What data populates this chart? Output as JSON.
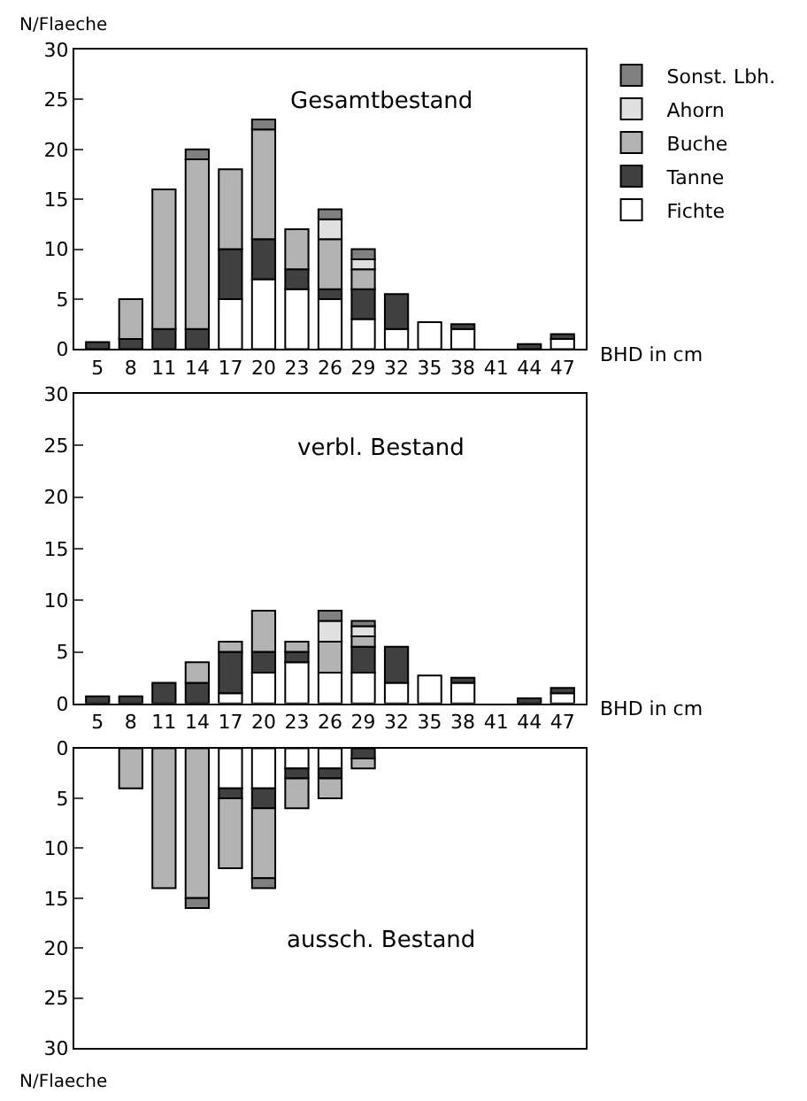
{
  "chart_data": [
    {
      "type": "bar",
      "stacked": true,
      "title": "Gesamtbestand",
      "xlabel": "BHD in cm",
      "ylabel": "N/Flaeche",
      "legend": "top right",
      "grid": false,
      "categories": [
        "5",
        "8",
        "11",
        "14",
        "17",
        "20",
        "23",
        "26",
        "29",
        "32",
        "35",
        "38",
        "41",
        "44",
        "47"
      ],
      "ylim": [
        0,
        30
      ],
      "yticks": [
        0,
        5,
        10,
        15,
        20,
        25,
        30
      ],
      "series": [
        {
          "name": "Fichte",
          "color": "#ffffff",
          "values": [
            null,
            null,
            null,
            null,
            5,
            7,
            6,
            5,
            3,
            2,
            2.7,
            2,
            null,
            null,
            1
          ]
        },
        {
          "name": "Tanne",
          "color": "#404040",
          "values": [
            0.7,
            1,
            2,
            2,
            5,
            4,
            2,
            1,
            3,
            3.5,
            null,
            0.5,
            null,
            0.5,
            0.5
          ]
        },
        {
          "name": "Buche",
          "color": "#b3b3b3",
          "values": [
            null,
            4,
            14,
            17,
            8,
            11,
            4,
            5,
            2,
            null,
            null,
            null,
            null,
            null,
            null
          ]
        },
        {
          "name": "Ahorn",
          "color": "#e0e0e0",
          "values": [
            null,
            null,
            null,
            null,
            null,
            null,
            null,
            2,
            1,
            null,
            null,
            null,
            null,
            null,
            null
          ]
        },
        {
          "name": "Sonst. Lbh.",
          "color": "#808080",
          "values": [
            null,
            null,
            null,
            1,
            null,
            1,
            null,
            1,
            1,
            null,
            null,
            null,
            null,
            null,
            null
          ]
        }
      ]
    },
    {
      "type": "bar",
      "stacked": true,
      "title": "verbl. Bestand",
      "xlabel": "BHD in cm",
      "grid": false,
      "categories": [
        "5",
        "8",
        "11",
        "14",
        "17",
        "20",
        "23",
        "26",
        "29",
        "32",
        "35",
        "38",
        "41",
        "44",
        "47"
      ],
      "ylim": [
        0,
        30
      ],
      "yticks": [
        0,
        5,
        10,
        15,
        20,
        25,
        30
      ],
      "series": [
        {
          "color": "#ffffff",
          "values": [
            null,
            null,
            null,
            null,
            1,
            3,
            4,
            3,
            3,
            2,
            2.7,
            2,
            null,
            null,
            1
          ]
        },
        {
          "color": "#404040",
          "values": [
            0.7,
            0.7,
            2,
            2,
            4,
            2,
            1,
            null,
            2.5,
            3.5,
            null,
            0.5,
            null,
            0.5,
            0.5
          ]
        },
        {
          "color": "#b3b3b3",
          "values": [
            null,
            null,
            null,
            2,
            1,
            4,
            1,
            3,
            1,
            null,
            null,
            null,
            null,
            null,
            null
          ]
        },
        {
          "color": "#e0e0e0",
          "values": [
            null,
            null,
            null,
            null,
            null,
            null,
            null,
            2,
            1,
            null,
            null,
            null,
            null,
            null,
            null
          ]
        },
        {
          "color": "#808080",
          "values": [
            null,
            null,
            null,
            null,
            null,
            null,
            null,
            1,
            0.5,
            null,
            null,
            null,
            null,
            null,
            null
          ]
        }
      ]
    },
    {
      "type": "bar",
      "stacked": true,
      "title": "aussch. Bestand",
      "ylabel": "N/Flaeche",
      "grid": false,
      "tick_labels": "y",
      "categories": [
        "5",
        "8",
        "11",
        "14",
        "17",
        "20",
        "23",
        "26",
        "29",
        "32",
        "35",
        "38",
        "41",
        "44",
        "47"
      ],
      "ylim": [
        30,
        0
      ],
      "yticks": [
        0,
        5,
        10,
        15,
        20,
        25,
        30
      ],
      "series": [
        {
          "color": "#ffffff",
          "values": [
            null,
            null,
            null,
            null,
            4,
            4,
            2,
            2,
            null,
            null,
            null,
            null,
            null,
            null,
            null
          ]
        },
        {
          "color": "#404040",
          "values": [
            null,
            null,
            null,
            null,
            1,
            2,
            1,
            1,
            1,
            null,
            null,
            null,
            null,
            null,
            null
          ]
        },
        {
          "color": "#b3b3b3",
          "values": [
            null,
            4,
            14,
            15,
            7,
            7,
            3,
            2,
            1,
            null,
            null,
            null,
            null,
            null,
            null
          ]
        },
        {
          "color": "#808080",
          "values": [
            null,
            null,
            null,
            1,
            null,
            1,
            null,
            null,
            null,
            null,
            null,
            null,
            null,
            null,
            null
          ]
        }
      ]
    }
  ]
}
